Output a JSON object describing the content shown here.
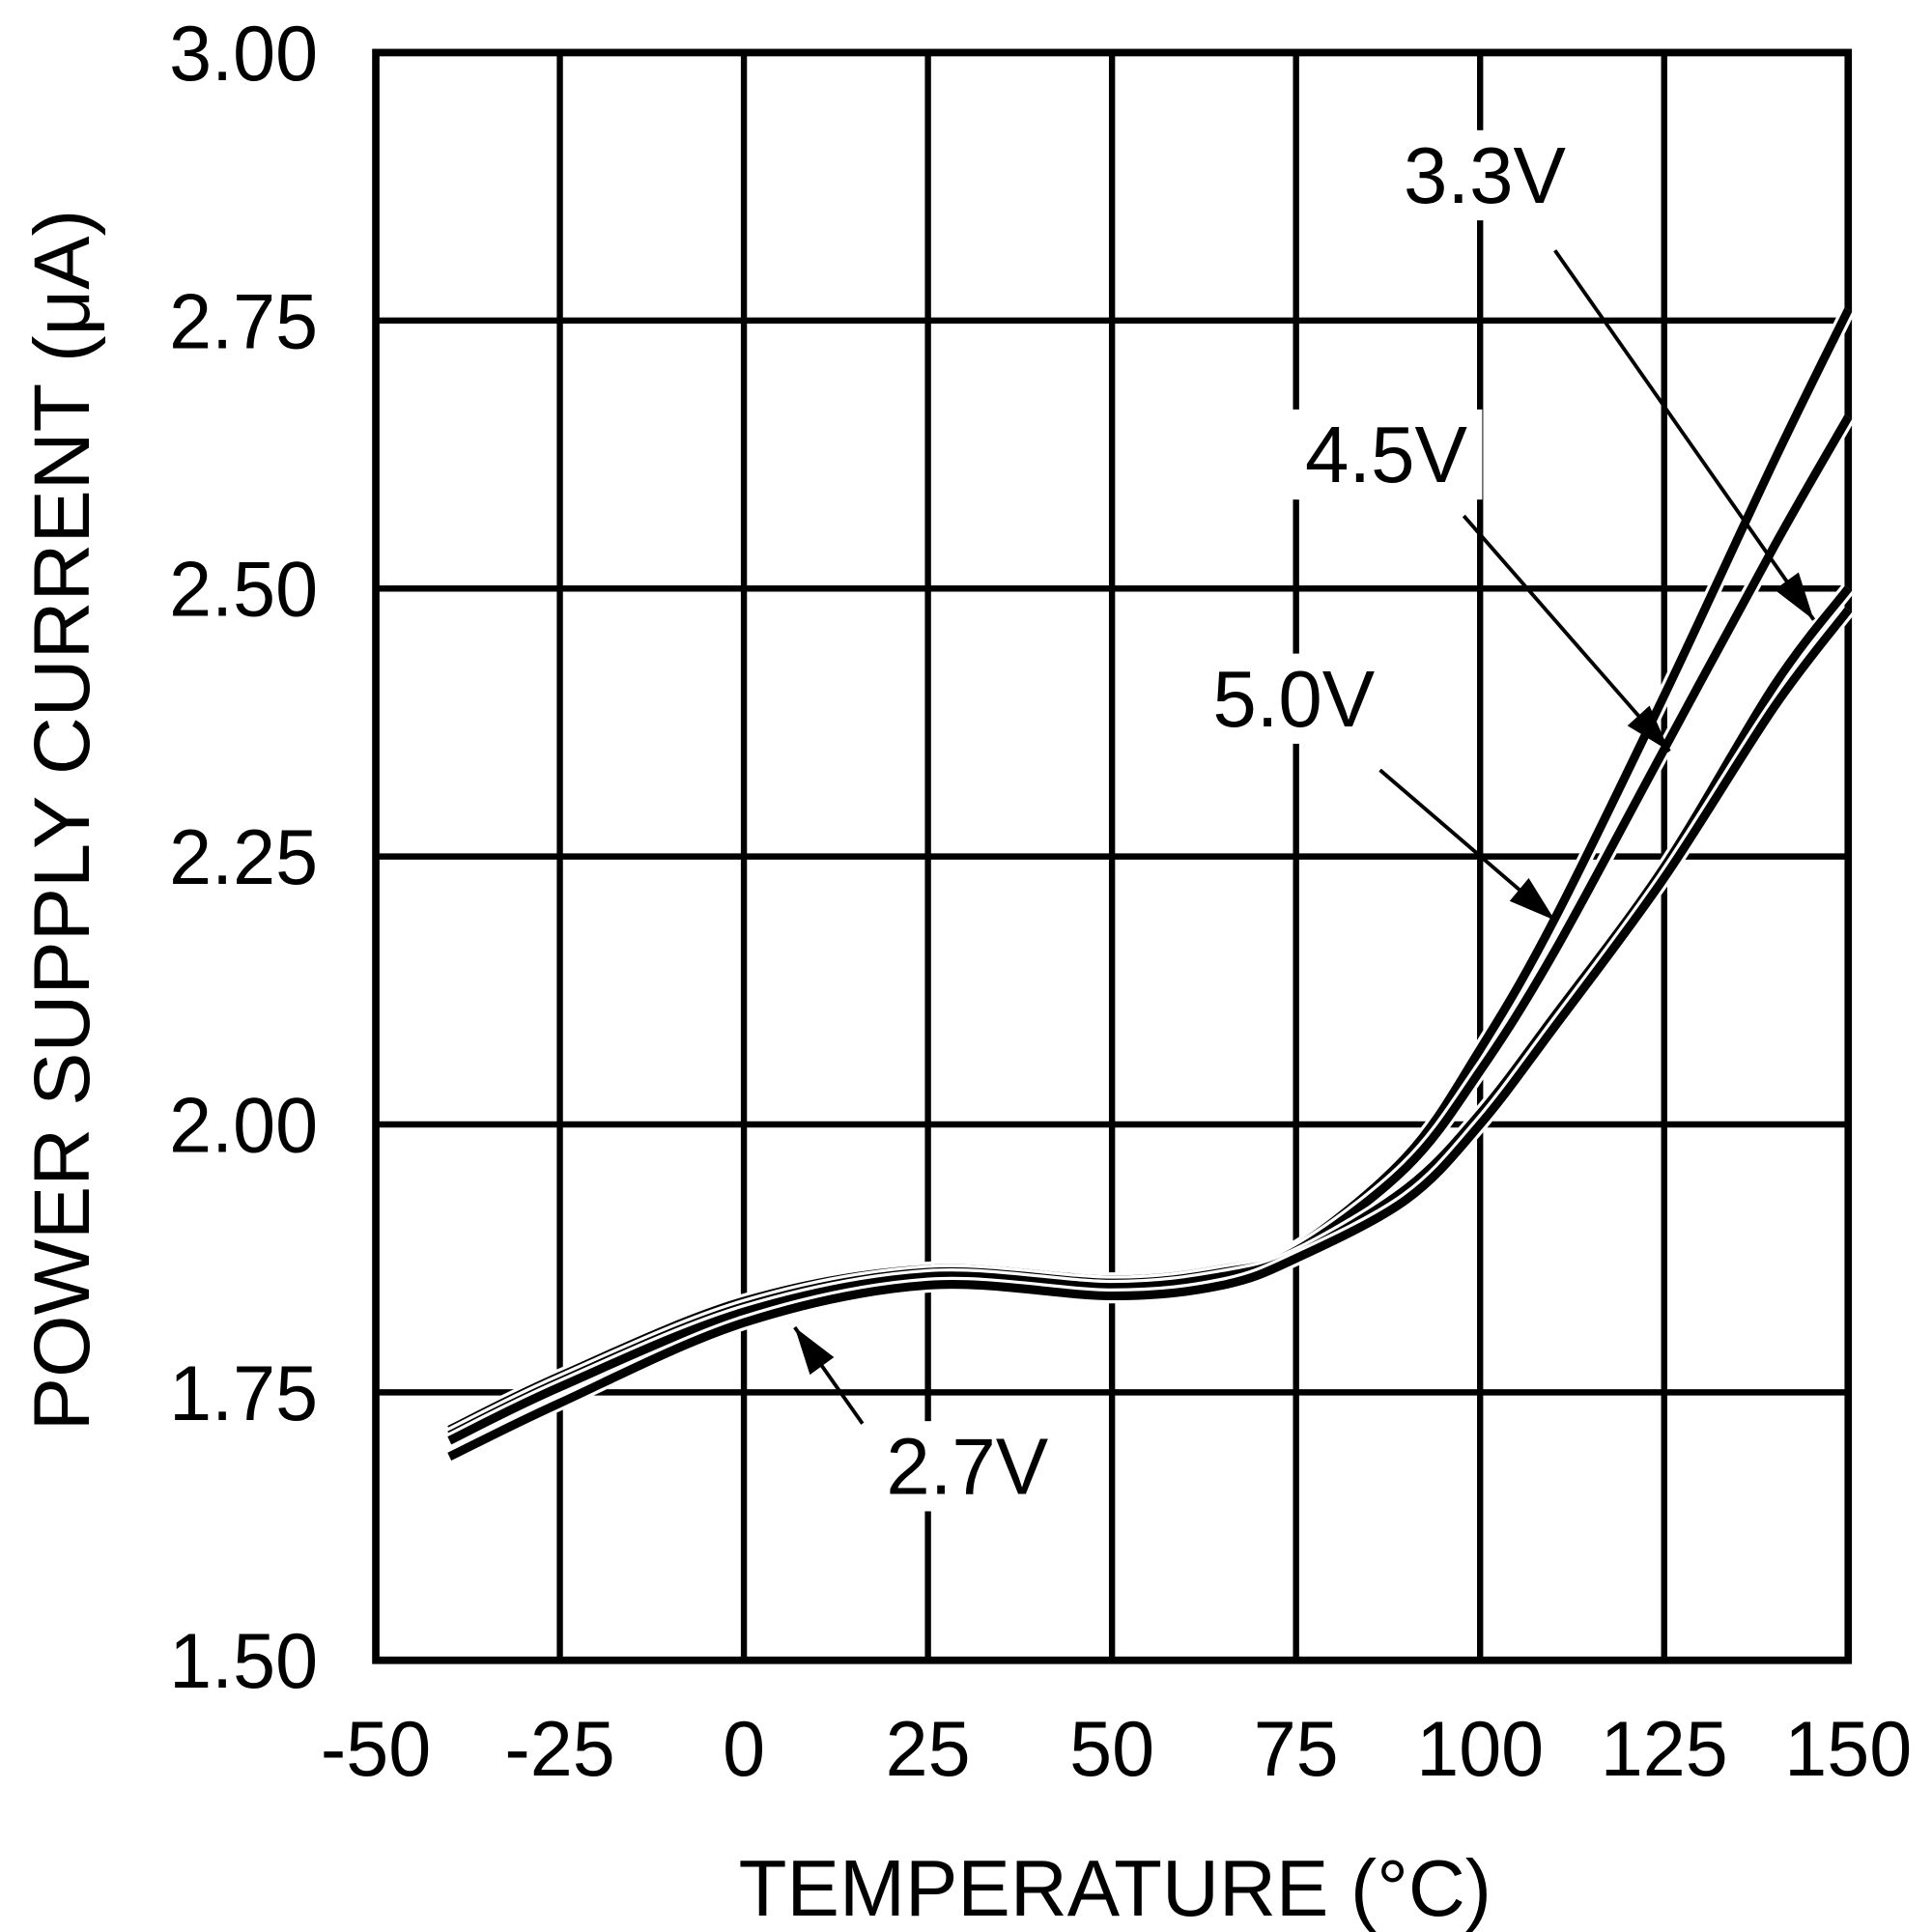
{
  "chart_data": {
    "type": "line",
    "title": "",
    "xlabel": "TEMPERATURE (°C)",
    "ylabel": "POWER SUPPLY CURRENT (μA)",
    "xlim": [
      -50,
      150
    ],
    "ylim": [
      1.5,
      3.0
    ],
    "xticks": [
      "-50",
      "-25",
      "0",
      "25",
      "50",
      "75",
      "100",
      "125",
      "150"
    ],
    "yticks": [
      "1.50",
      "1.75",
      "2.00",
      "2.25",
      "2.50",
      "2.75",
      "3.00"
    ],
    "grid": true,
    "legend": "inline annotations with arrows",
    "line_color": "#000000",
    "series": [
      {
        "name": "5.0V",
        "x": [
          -40,
          -25,
          0,
          25,
          50,
          65,
          75,
          90,
          100,
          110,
          125,
          140,
          150
        ],
        "y": [
          1.715,
          1.765,
          1.835,
          1.865,
          1.855,
          1.865,
          1.885,
          1.97,
          2.07,
          2.19,
          2.4,
          2.62,
          2.76
        ]
      },
      {
        "name": "4.5V",
        "x": [
          -40,
          -25,
          0,
          25,
          50,
          65,
          75,
          90,
          100,
          110,
          125,
          140,
          150
        ],
        "y": [
          1.71,
          1.76,
          1.83,
          1.862,
          1.852,
          1.862,
          1.882,
          1.96,
          2.05,
          2.16,
          2.35,
          2.54,
          2.66
        ]
      },
      {
        "name": "3.3V",
        "x": [
          -40,
          -25,
          0,
          25,
          50,
          65,
          75,
          90,
          100,
          110,
          125,
          140,
          150
        ],
        "y": [
          1.705,
          1.755,
          1.825,
          1.858,
          1.848,
          1.858,
          1.878,
          1.94,
          2.01,
          2.1,
          2.24,
          2.41,
          2.5
        ]
      },
      {
        "name": "2.7V",
        "x": [
          -40,
          -25,
          0,
          25,
          50,
          65,
          75,
          90,
          100,
          110,
          125,
          140,
          150
        ],
        "y": [
          1.69,
          1.74,
          1.815,
          1.85,
          1.84,
          1.85,
          1.875,
          1.93,
          2.0,
          2.09,
          2.23,
          2.39,
          2.48
        ]
      }
    ]
  }
}
